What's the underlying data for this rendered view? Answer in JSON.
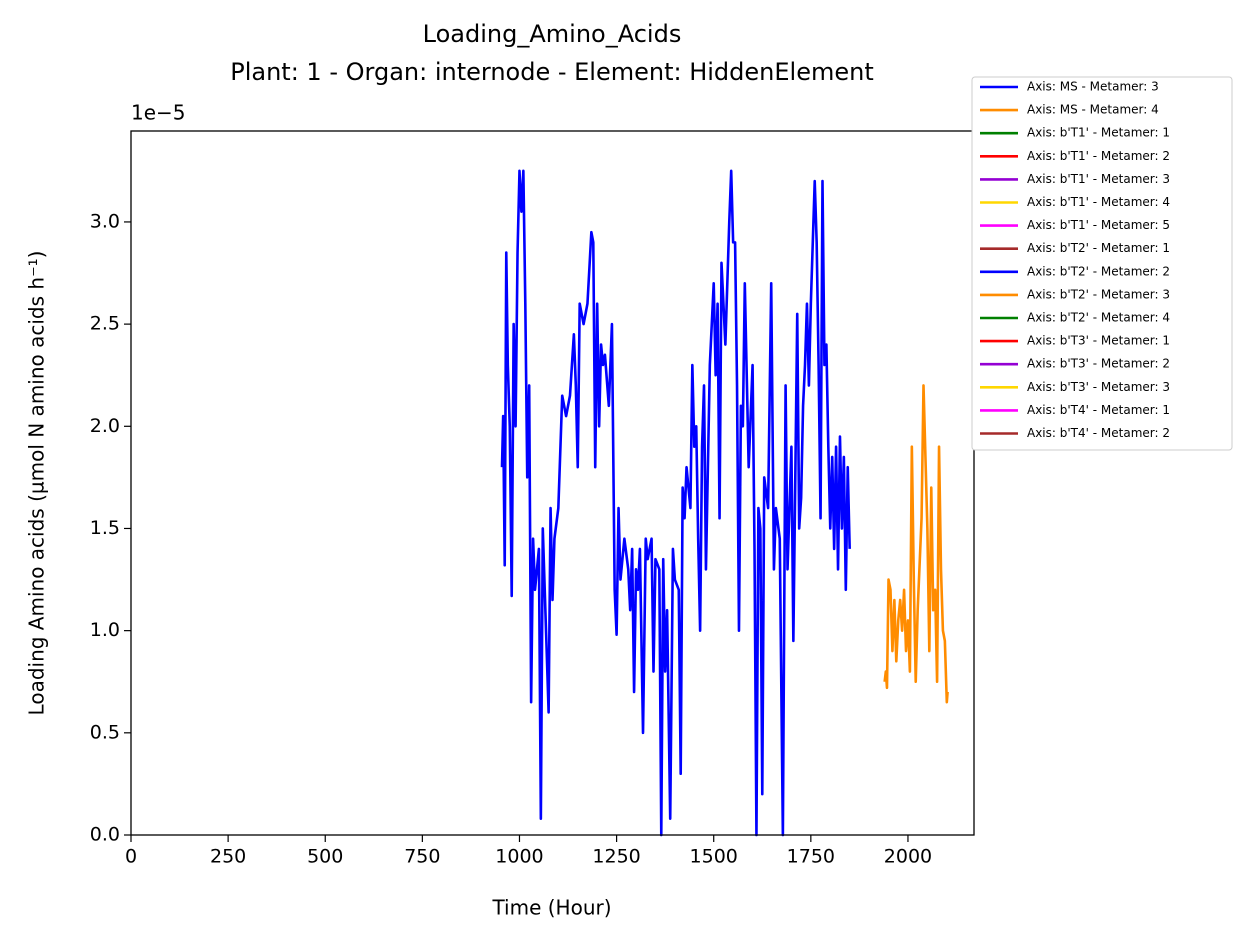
{
  "chart_data": {
    "type": "line",
    "title": "Loading_Amino_Acids",
    "subtitle": "Plant: 1 - Organ: internode - Element: HiddenElement",
    "x_label": "Time (Hour)",
    "y_label": "Loading Amino acids (µmol N amino acids h⁻¹)",
    "y_offset_label": "1e−5",
    "xlim": [
      0,
      2170
    ],
    "ylim": [
      0,
      3.445
    ],
    "xticks": [
      0,
      250,
      500,
      750,
      1000,
      1250,
      1500,
      1750,
      2000
    ],
    "yticks": [
      {
        "value": 0,
        "label": "0.0"
      },
      0.5,
      {
        "value": 1,
        "label": "1.0"
      },
      1.5,
      {
        "value": 2,
        "label": "2.0"
      },
      2.5,
      {
        "value": 3,
        "label": "3.0"
      }
    ],
    "legend": "outside-upper-right",
    "series": [
      {
        "name": "Axis: MS - Metamer: 3",
        "color": "#0000ff",
        "x": [
          955,
          958,
          962,
          966,
          970,
          975,
          980,
          985,
          990,
          995,
          1000,
          1005,
          1010,
          1015,
          1020,
          1025,
          1030,
          1035,
          1040,
          1050,
          1055,
          1060,
          1065,
          1075,
          1080,
          1085,
          1090,
          1100,
          1110,
          1120,
          1130,
          1140,
          1145,
          1150,
          1155,
          1165,
          1175,
          1185,
          1190,
          1195,
          1200,
          1205,
          1210,
          1215,
          1220,
          1230,
          1238,
          1245,
          1250,
          1255,
          1260,
          1270,
          1280,
          1285,
          1290,
          1295,
          1300,
          1305,
          1310,
          1318,
          1325,
          1330,
          1340,
          1345,
          1350,
          1360,
          1365,
          1370,
          1375,
          1380,
          1388,
          1395,
          1400,
          1410,
          1415,
          1420,
          1425,
          1430,
          1440,
          1445,
          1450,
          1455,
          1460,
          1465,
          1470,
          1475,
          1480,
          1490,
          1500,
          1505,
          1510,
          1515,
          1520,
          1530,
          1540,
          1545,
          1550,
          1555,
          1560,
          1565,
          1570,
          1575,
          1580,
          1590,
          1600,
          1605,
          1610,
          1615,
          1620,
          1625,
          1630,
          1640,
          1648,
          1655,
          1660,
          1670,
          1678,
          1685,
          1690,
          1700,
          1705,
          1715,
          1720,
          1725,
          1730,
          1735,
          1740,
          1745,
          1750,
          1760,
          1765,
          1770,
          1775,
          1780,
          1785,
          1790,
          1795,
          1800,
          1805,
          1810,
          1815,
          1820,
          1825,
          1830,
          1835,
          1840,
          1845,
          1850
        ],
        "values": [
          1.8,
          2.05,
          1.32,
          2.85,
          2.3,
          2.0,
          1.17,
          2.5,
          2.0,
          2.85,
          3.25,
          3.05,
          3.25,
          2.6,
          1.75,
          2.2,
          0.65,
          1.45,
          1.2,
          1.4,
          0.08,
          1.5,
          1.2,
          0.6,
          1.6,
          1.15,
          1.45,
          1.6,
          2.15,
          2.05,
          2.15,
          2.45,
          2.2,
          1.8,
          2.6,
          2.5,
          2.6,
          2.95,
          2.9,
          1.8,
          2.6,
          2.0,
          2.4,
          2.3,
          2.35,
          2.1,
          2.5,
          1.2,
          0.98,
          1.6,
          1.25,
          1.45,
          1.3,
          1.1,
          1.4,
          0.7,
          1.3,
          1.2,
          1.4,
          0.5,
          1.45,
          1.35,
          1.45,
          0.8,
          1.35,
          1.3,
          0.0,
          1.35,
          0.8,
          1.1,
          0.08,
          1.4,
          1.25,
          1.2,
          0.3,
          1.7,
          1.55,
          1.8,
          1.6,
          2.3,
          1.9,
          2.0,
          1.45,
          1.0,
          1.9,
          2.2,
          1.3,
          2.3,
          2.7,
          2.25,
          2.6,
          1.55,
          2.8,
          2.4,
          3.0,
          3.25,
          2.9,
          2.9,
          2.2,
          1.0,
          2.1,
          2.0,
          2.7,
          1.8,
          2.3,
          1.4,
          0.0,
          1.6,
          1.5,
          0.2,
          1.75,
          1.6,
          2.7,
          1.3,
          1.6,
          1.45,
          0.0,
          2.2,
          1.3,
          1.9,
          0.95,
          2.55,
          1.5,
          1.65,
          2.1,
          2.3,
          2.6,
          2.2,
          2.6,
          3.2,
          2.9,
          2.3,
          1.55,
          3.2,
          2.3,
          2.4,
          1.9,
          1.5,
          1.85,
          1.4,
          1.9,
          1.3,
          1.95,
          1.5,
          1.85,
          1.2,
          1.8,
          1.4
        ]
      },
      {
        "name": "Axis: MS - Metamer: 4",
        "color": "#ff8c00",
        "x": [
          1940,
          1943,
          1946,
          1950,
          1955,
          1960,
          1965,
          1970,
          1975,
          1980,
          1985,
          1990,
          1995,
          2000,
          2005,
          2010,
          2015,
          2020,
          2025,
          2035,
          2040,
          2045,
          2050,
          2055,
          2060,
          2065,
          2070,
          2075,
          2080,
          2085,
          2090,
          2095,
          2100,
          2102
        ],
        "values": [
          0.75,
          0.8,
          0.72,
          1.25,
          1.2,
          0.9,
          1.15,
          0.85,
          1.05,
          1.15,
          1.0,
          1.2,
          0.9,
          1.05,
          0.8,
          1.9,
          1.25,
          0.75,
          1.1,
          1.55,
          2.2,
          1.85,
          1.5,
          0.9,
          1.7,
          1.1,
          1.2,
          0.75,
          1.9,
          1.3,
          1.0,
          0.95,
          0.65,
          0.7
        ]
      },
      {
        "name": "Axis: b'T1' - Metamer: 1",
        "color": "#008000",
        "x": [],
        "values": []
      },
      {
        "name": "Axis: b'T1' - Metamer: 2",
        "color": "#ff0000",
        "x": [],
        "values": []
      },
      {
        "name": "Axis: b'T1' - Metamer: 3",
        "color": "#9400d3",
        "x": [],
        "values": []
      },
      {
        "name": "Axis: b'T1' - Metamer: 4",
        "color": "#ffd700",
        "x": [],
        "values": []
      },
      {
        "name": "Axis: b'T1' - Metamer: 5",
        "color": "#ff00ff",
        "x": [],
        "values": []
      },
      {
        "name": "Axis: b'T2' - Metamer: 1",
        "color": "#a52a2a",
        "x": [],
        "values": []
      },
      {
        "name": "Axis: b'T2' - Metamer: 2",
        "color": "#0000ff",
        "x": [],
        "values": []
      },
      {
        "name": "Axis: b'T2' - Metamer: 3",
        "color": "#ff8c00",
        "x": [],
        "values": []
      },
      {
        "name": "Axis: b'T2' - Metamer: 4",
        "color": "#008000",
        "x": [],
        "values": []
      },
      {
        "name": "Axis: b'T3' - Metamer: 1",
        "color": "#ff0000",
        "x": [],
        "values": []
      },
      {
        "name": "Axis: b'T3' - Metamer: 2",
        "color": "#9400d3",
        "x": [],
        "values": []
      },
      {
        "name": "Axis: b'T3' - Metamer: 3",
        "color": "#ffd700",
        "x": [],
        "values": []
      },
      {
        "name": "Axis: b'T4' - Metamer: 1",
        "color": "#ff00ff",
        "x": [],
        "values": []
      },
      {
        "name": "Axis: b'T4' - Metamer: 2",
        "color": "#a52a2a",
        "x": [],
        "values": []
      }
    ]
  }
}
